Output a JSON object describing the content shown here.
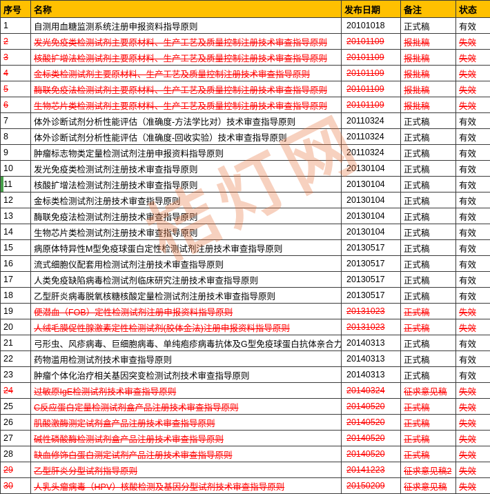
{
  "colors": {
    "header_bg": "#FFC000",
    "invalid_text": "#FF0000",
    "row_marker_green": "#46A049",
    "watermark_color": "rgba(232,114,60,0.33)"
  },
  "watermark": {
    "text": "桔灯网"
  },
  "table": {
    "headers": [
      {
        "key": "no",
        "label": "序号"
      },
      {
        "key": "name",
        "label": "名称"
      },
      {
        "key": "date",
        "label": "发布日期"
      },
      {
        "key": "note",
        "label": "备注"
      },
      {
        "key": "status",
        "label": "状态"
      }
    ],
    "rows": [
      {
        "no": "1",
        "name": "自测用血糖监测系统注册申报资料指导原则",
        "date": "20101018",
        "note": "正式稿",
        "status": "有效",
        "invalid": false,
        "num_struck": false,
        "marker": false
      },
      {
        "no": "2",
        "name": "发光免疫类检测试剂主要原材料、生产工艺及质量控制注册技术审查指导原则",
        "date": "20101109",
        "note": "报批稿",
        "status": "失效",
        "invalid": true,
        "num_struck": true,
        "marker": false
      },
      {
        "no": "3",
        "name": "核酸扩增法检测试剂主要原材料、生产工艺及质量控制注册技术审查指导原则",
        "date": "20101109",
        "note": "报批稿",
        "status": "失效",
        "invalid": true,
        "num_struck": true,
        "marker": false
      },
      {
        "no": "4",
        "name": "金标类检测试剂主要原材料、生产工艺及质量控制注册技术审查指导原则",
        "date": "20101109",
        "note": "报批稿",
        "status": "失效",
        "invalid": true,
        "num_struck": true,
        "marker": false
      },
      {
        "no": "5",
        "name": "酶联免疫法检测试剂主要原材料、生产工艺及质量控制注册技术审查指导原则",
        "date": "20101109",
        "note": "报批稿",
        "status": "失效",
        "invalid": true,
        "num_struck": true,
        "marker": false
      },
      {
        "no": "6",
        "name": "生物芯片类检测试剂主要原材料、生产工艺及质量控制注册技术审查指导原则",
        "date": "20101109",
        "note": "报批稿",
        "status": "失效",
        "invalid": true,
        "num_struck": true,
        "marker": false
      },
      {
        "no": "7",
        "name": "体外诊断试剂分析性能评估（准确度-方法学比对）技术审查指导原则",
        "date": "20110324",
        "note": "正式稿",
        "status": "有效",
        "invalid": false,
        "num_struck": false,
        "marker": false
      },
      {
        "no": "8",
        "name": "体外诊断试剂分析性能评估（准确度-回收实验）技术审查指导原则",
        "date": "20110324",
        "note": "正式稿",
        "status": "有效",
        "invalid": false,
        "num_struck": false,
        "marker": false
      },
      {
        "no": "9",
        "name": "肿瘤标志物类定量检测试剂注册申报资料指导原则",
        "date": "20110324",
        "note": "正式稿",
        "status": "有效",
        "invalid": false,
        "num_struck": false,
        "marker": false
      },
      {
        "no": "10",
        "name": "发光免疫类检测试剂注册技术审查指导原则",
        "date": "20130104",
        "note": "正式稿",
        "status": "有效",
        "invalid": false,
        "num_struck": false,
        "marker": false
      },
      {
        "no": "11",
        "name": "核酸扩增法检测试剂注册技术审查指导原则",
        "date": "20130104",
        "note": "正式稿",
        "status": "有效",
        "invalid": false,
        "num_struck": false,
        "marker": true
      },
      {
        "no": "12",
        "name": "金标类检测试剂注册技术审查指导原则",
        "date": "20130104",
        "note": "正式稿",
        "status": "有效",
        "invalid": false,
        "num_struck": false,
        "marker": false
      },
      {
        "no": "13",
        "name": "酶联免疫法检测试剂注册技术审查指导原则",
        "date": "20130104",
        "note": "正式稿",
        "status": "有效",
        "invalid": false,
        "num_struck": false,
        "marker": false
      },
      {
        "no": "14",
        "name": "生物芯片类检测试剂注册技术审查指导原则",
        "date": "20130104",
        "note": "正式稿",
        "status": "有效",
        "invalid": false,
        "num_struck": false,
        "marker": false
      },
      {
        "no": "15",
        "name": "病原体特异性M型免疫球蛋白定性检测试剂注册技术审查指导原则",
        "date": "20130517",
        "note": "正式稿",
        "status": "有效",
        "invalid": false,
        "num_struck": false,
        "marker": false
      },
      {
        "no": "16",
        "name": "流式细胞仪配套用检测试剂注册技术审查指导原则",
        "date": "20130517",
        "note": "正式稿",
        "status": "有效",
        "invalid": false,
        "num_struck": false,
        "marker": false
      },
      {
        "no": "17",
        "name": "人类免疫缺陷病毒检测试剂临床研究注册技术审查指导原则",
        "date": "20130517",
        "note": "正式稿",
        "status": "有效",
        "invalid": false,
        "num_struck": false,
        "marker": false
      },
      {
        "no": "18",
        "name": "乙型肝炎病毒脱氧核糖核酸定量检测试剂注册技术审查指导原则",
        "date": "20130517",
        "note": "正式稿",
        "status": "有效",
        "invalid": false,
        "num_struck": false,
        "marker": false
      },
      {
        "no": "19",
        "name": "便潜血（FOB）定性检测试剂注册申报资料指导原则",
        "date": "20131023",
        "note": "正式稿",
        "status": "失效",
        "invalid": true,
        "num_struck": false,
        "marker": false
      },
      {
        "no": "20",
        "name": "人绒毛膜促性腺激素定性检测试剂(胶体金法)注册申报资料指导原则",
        "date": "20131023",
        "note": "正式稿",
        "status": "失效",
        "invalid": true,
        "num_struck": false,
        "marker": false
      },
      {
        "no": "21",
        "name": "弓形虫、风疹病毒、巨细胞病毒、单纯疱疹病毒抗体及G型免疫球蛋白抗体亲合力检",
        "date": "20140313",
        "note": "正式稿",
        "status": "有效",
        "invalid": false,
        "num_struck": false,
        "marker": false
      },
      {
        "no": "22",
        "name": "药物滥用检测试剂技术审查指导原则",
        "date": "20140313",
        "note": "正式稿",
        "status": "有效",
        "invalid": false,
        "num_struck": false,
        "marker": false
      },
      {
        "no": "23",
        "name": "肿瘤个体化治疗相关基因突变检测试剂技术审查指导原则",
        "date": "20140313",
        "note": "正式稿",
        "status": "有效",
        "invalid": false,
        "num_struck": false,
        "marker": false
      },
      {
        "no": "24",
        "name": "过敏原IgE检测试剂技术审查指导原则",
        "date": "20140324",
        "note": "征求意见稿",
        "status": "失效",
        "invalid": true,
        "num_struck": true,
        "marker": false
      },
      {
        "no": "25",
        "name": "C反应蛋白定量检测试剂盒产品注册技术审查指导原则",
        "date": "20140520",
        "note": "正式稿",
        "status": "失效",
        "invalid": true,
        "num_struck": false,
        "marker": false
      },
      {
        "no": "26",
        "name": "肌酸激酶测定试剂盒产品注册技术审查指导原则",
        "date": "20140520",
        "note": "正式稿",
        "status": "失效",
        "invalid": true,
        "num_struck": false,
        "marker": false
      },
      {
        "no": "27",
        "name": "碱性磷酸酶检测试剂盒产品注册技术审查指导原则",
        "date": "20140520",
        "note": "正式稿",
        "status": "失效",
        "invalid": true,
        "num_struck": false,
        "marker": false
      },
      {
        "no": "28",
        "name": "缺血修饰白蛋白测定试剂产品注册技术审查指导原则",
        "date": "20140520",
        "note": "正式稿",
        "status": "失效",
        "invalid": true,
        "num_struck": false,
        "marker": false
      },
      {
        "no": "29",
        "name": "乙型肝炎分型试剂指导原则",
        "date": "20141223",
        "note": "征求意见稿2",
        "status": "失效",
        "invalid": true,
        "num_struck": true,
        "marker": false
      },
      {
        "no": "30",
        "name": "人乳头瘤病毒（HPV）核酸检测及基因分型试剂技术审查指导原则",
        "date": "20150209",
        "note": "征求意见稿",
        "status": "失效",
        "invalid": true,
        "num_struck": true,
        "marker": false
      }
    ]
  }
}
